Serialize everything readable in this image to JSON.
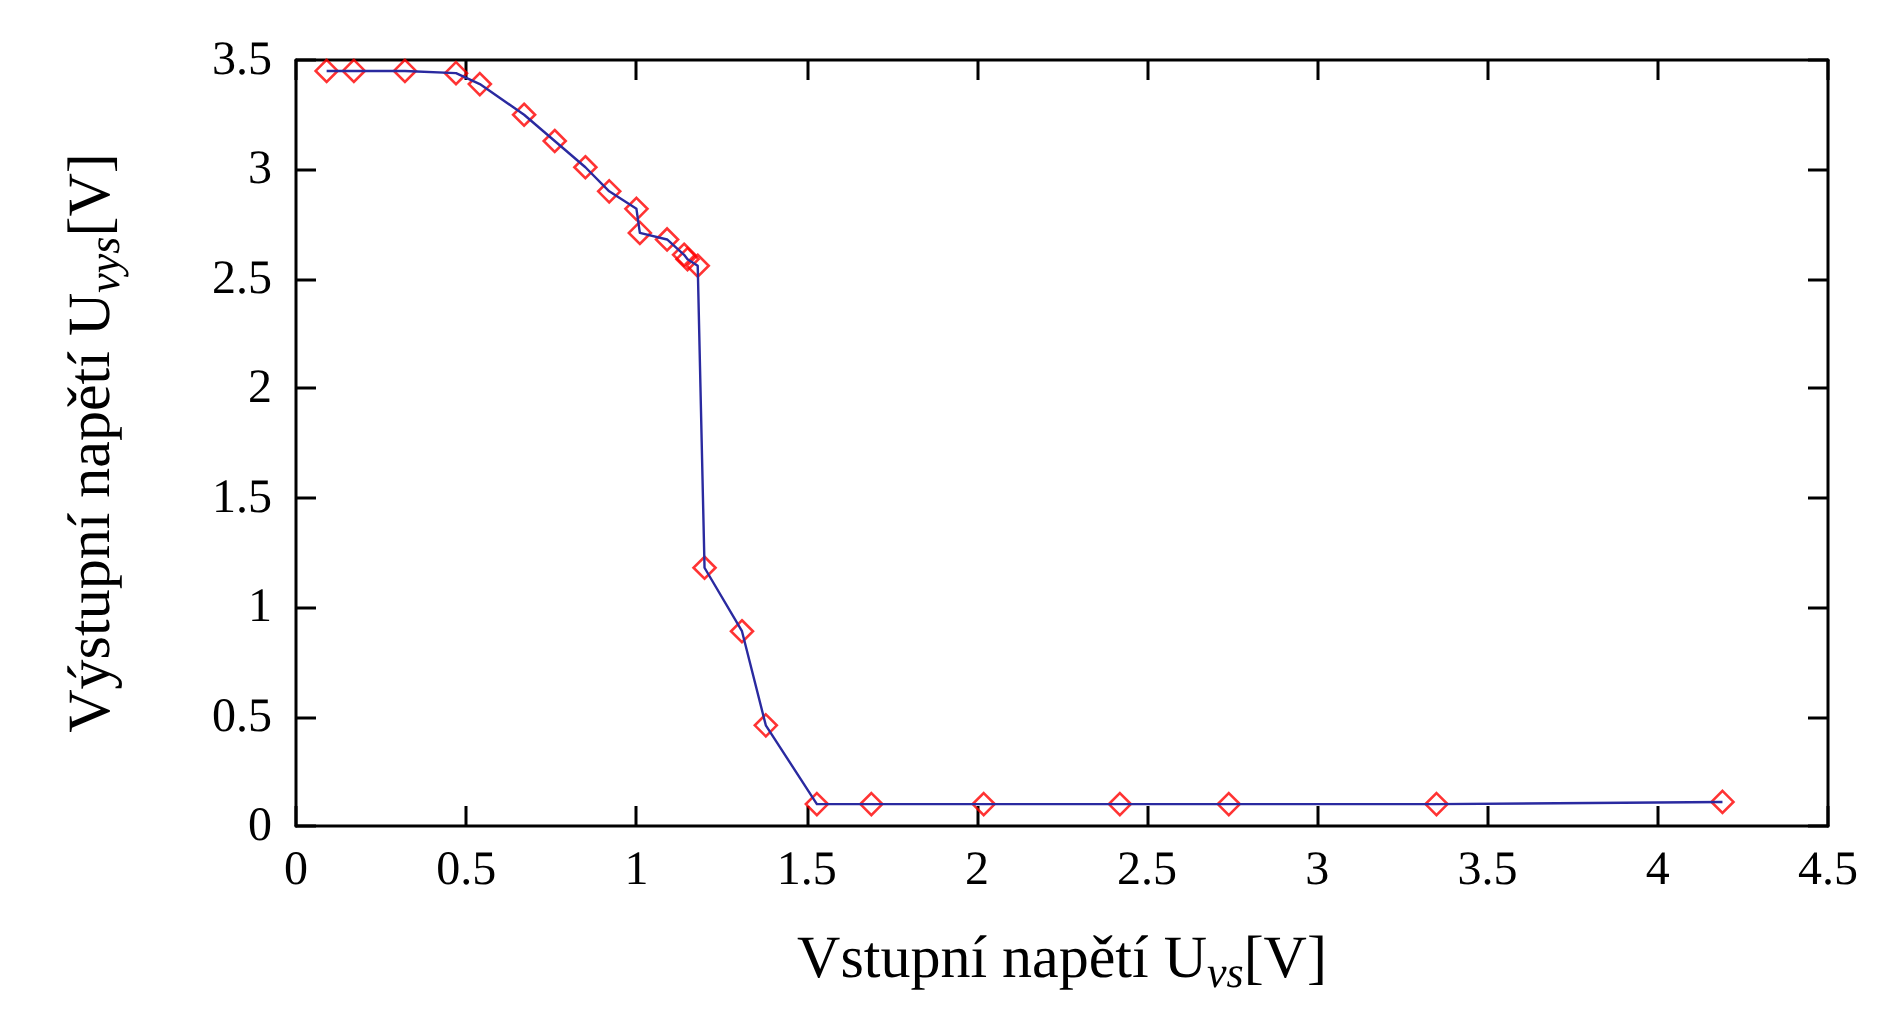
{
  "chart_data": {
    "type": "line",
    "xlabel": "Vstupní napětí U$_{vs}$[V]",
    "ylabel": "Výstupní napětí U$_{vys}$[V]",
    "x": [
      0.09,
      0.17,
      0.32,
      0.47,
      0.54,
      0.67,
      0.76,
      0.85,
      0.92,
      1.0,
      1.01,
      1.09,
      1.14,
      1.15,
      1.18,
      1.2,
      1.31,
      1.38,
      1.53,
      1.69,
      2.02,
      2.42,
      2.74,
      3.35,
      4.19
    ],
    "series": [
      {
        "marker": "none",
        "color": "#2a2aa0",
        "values": [
          3.45,
          3.45,
          3.45,
          3.44,
          3.39,
          3.25,
          3.13,
          3.01,
          2.9,
          2.82,
          2.71,
          2.68,
          2.61,
          2.59,
          2.56,
          1.18,
          0.89,
          0.46,
          0.1,
          0.1,
          0.1,
          0.1,
          0.1,
          0.1,
          0.11
        ]
      },
      {
        "type": "scatter",
        "marker": "diamond",
        "color": "#ff0000",
        "values": [
          3.45,
          3.45,
          3.45,
          3.44,
          3.39,
          3.25,
          3.13,
          3.01,
          2.9,
          2.82,
          2.71,
          2.68,
          2.61,
          2.59,
          2.56,
          1.18,
          0.89,
          0.46,
          0.1,
          0.1,
          0.1,
          0.1,
          0.1,
          0.1,
          0.11
        ]
      }
    ],
    "xlim": [
      0,
      4.5
    ],
    "xticks": [
      0,
      0.5,
      1,
      1.5,
      2,
      2.5,
      3,
      3.5,
      4,
      4.5
    ],
    "ylim": [
      0,
      3.5
    ],
    "yticks": [
      0,
      0.5,
      1,
      1.5,
      2,
      2.5,
      3,
      3.5
    ],
    "grid": false,
    "line_style": "solid"
  }
}
